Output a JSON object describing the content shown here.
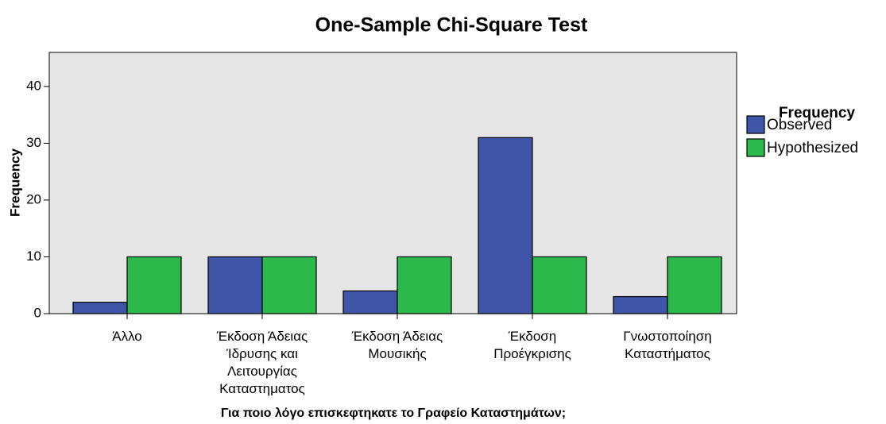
{
  "chart_data": {
    "type": "bar",
    "title": "One-Sample Chi-Square Test",
    "x_label": "Για ποιο λόγο επισκεφτηκατε το Γραφείο Καταστημάτων;",
    "y_label": "Frequency",
    "legend_title": "Frequency",
    "categories": [
      "Άλλο",
      "Έκδοση Άδειας Ίδρυσης και Λειτουργίας Καταστηματος",
      "Έκδοση Άδειας Μουσικής",
      "Έκδοση Προέγκρισης",
      "Γνωστοποίηση Καταστήματος"
    ],
    "series": [
      {
        "name": "Observed",
        "color": "#3f56a8",
        "values": [
          2,
          10,
          4,
          31,
          3
        ]
      },
      {
        "name": "Hypothesized",
        "color": "#2db84c",
        "values": [
          10,
          10,
          10,
          10,
          10
        ]
      }
    ],
    "ylim": [
      0,
      46
    ],
    "yticks": [
      0,
      10,
      20,
      30,
      40
    ],
    "legend": "right"
  }
}
